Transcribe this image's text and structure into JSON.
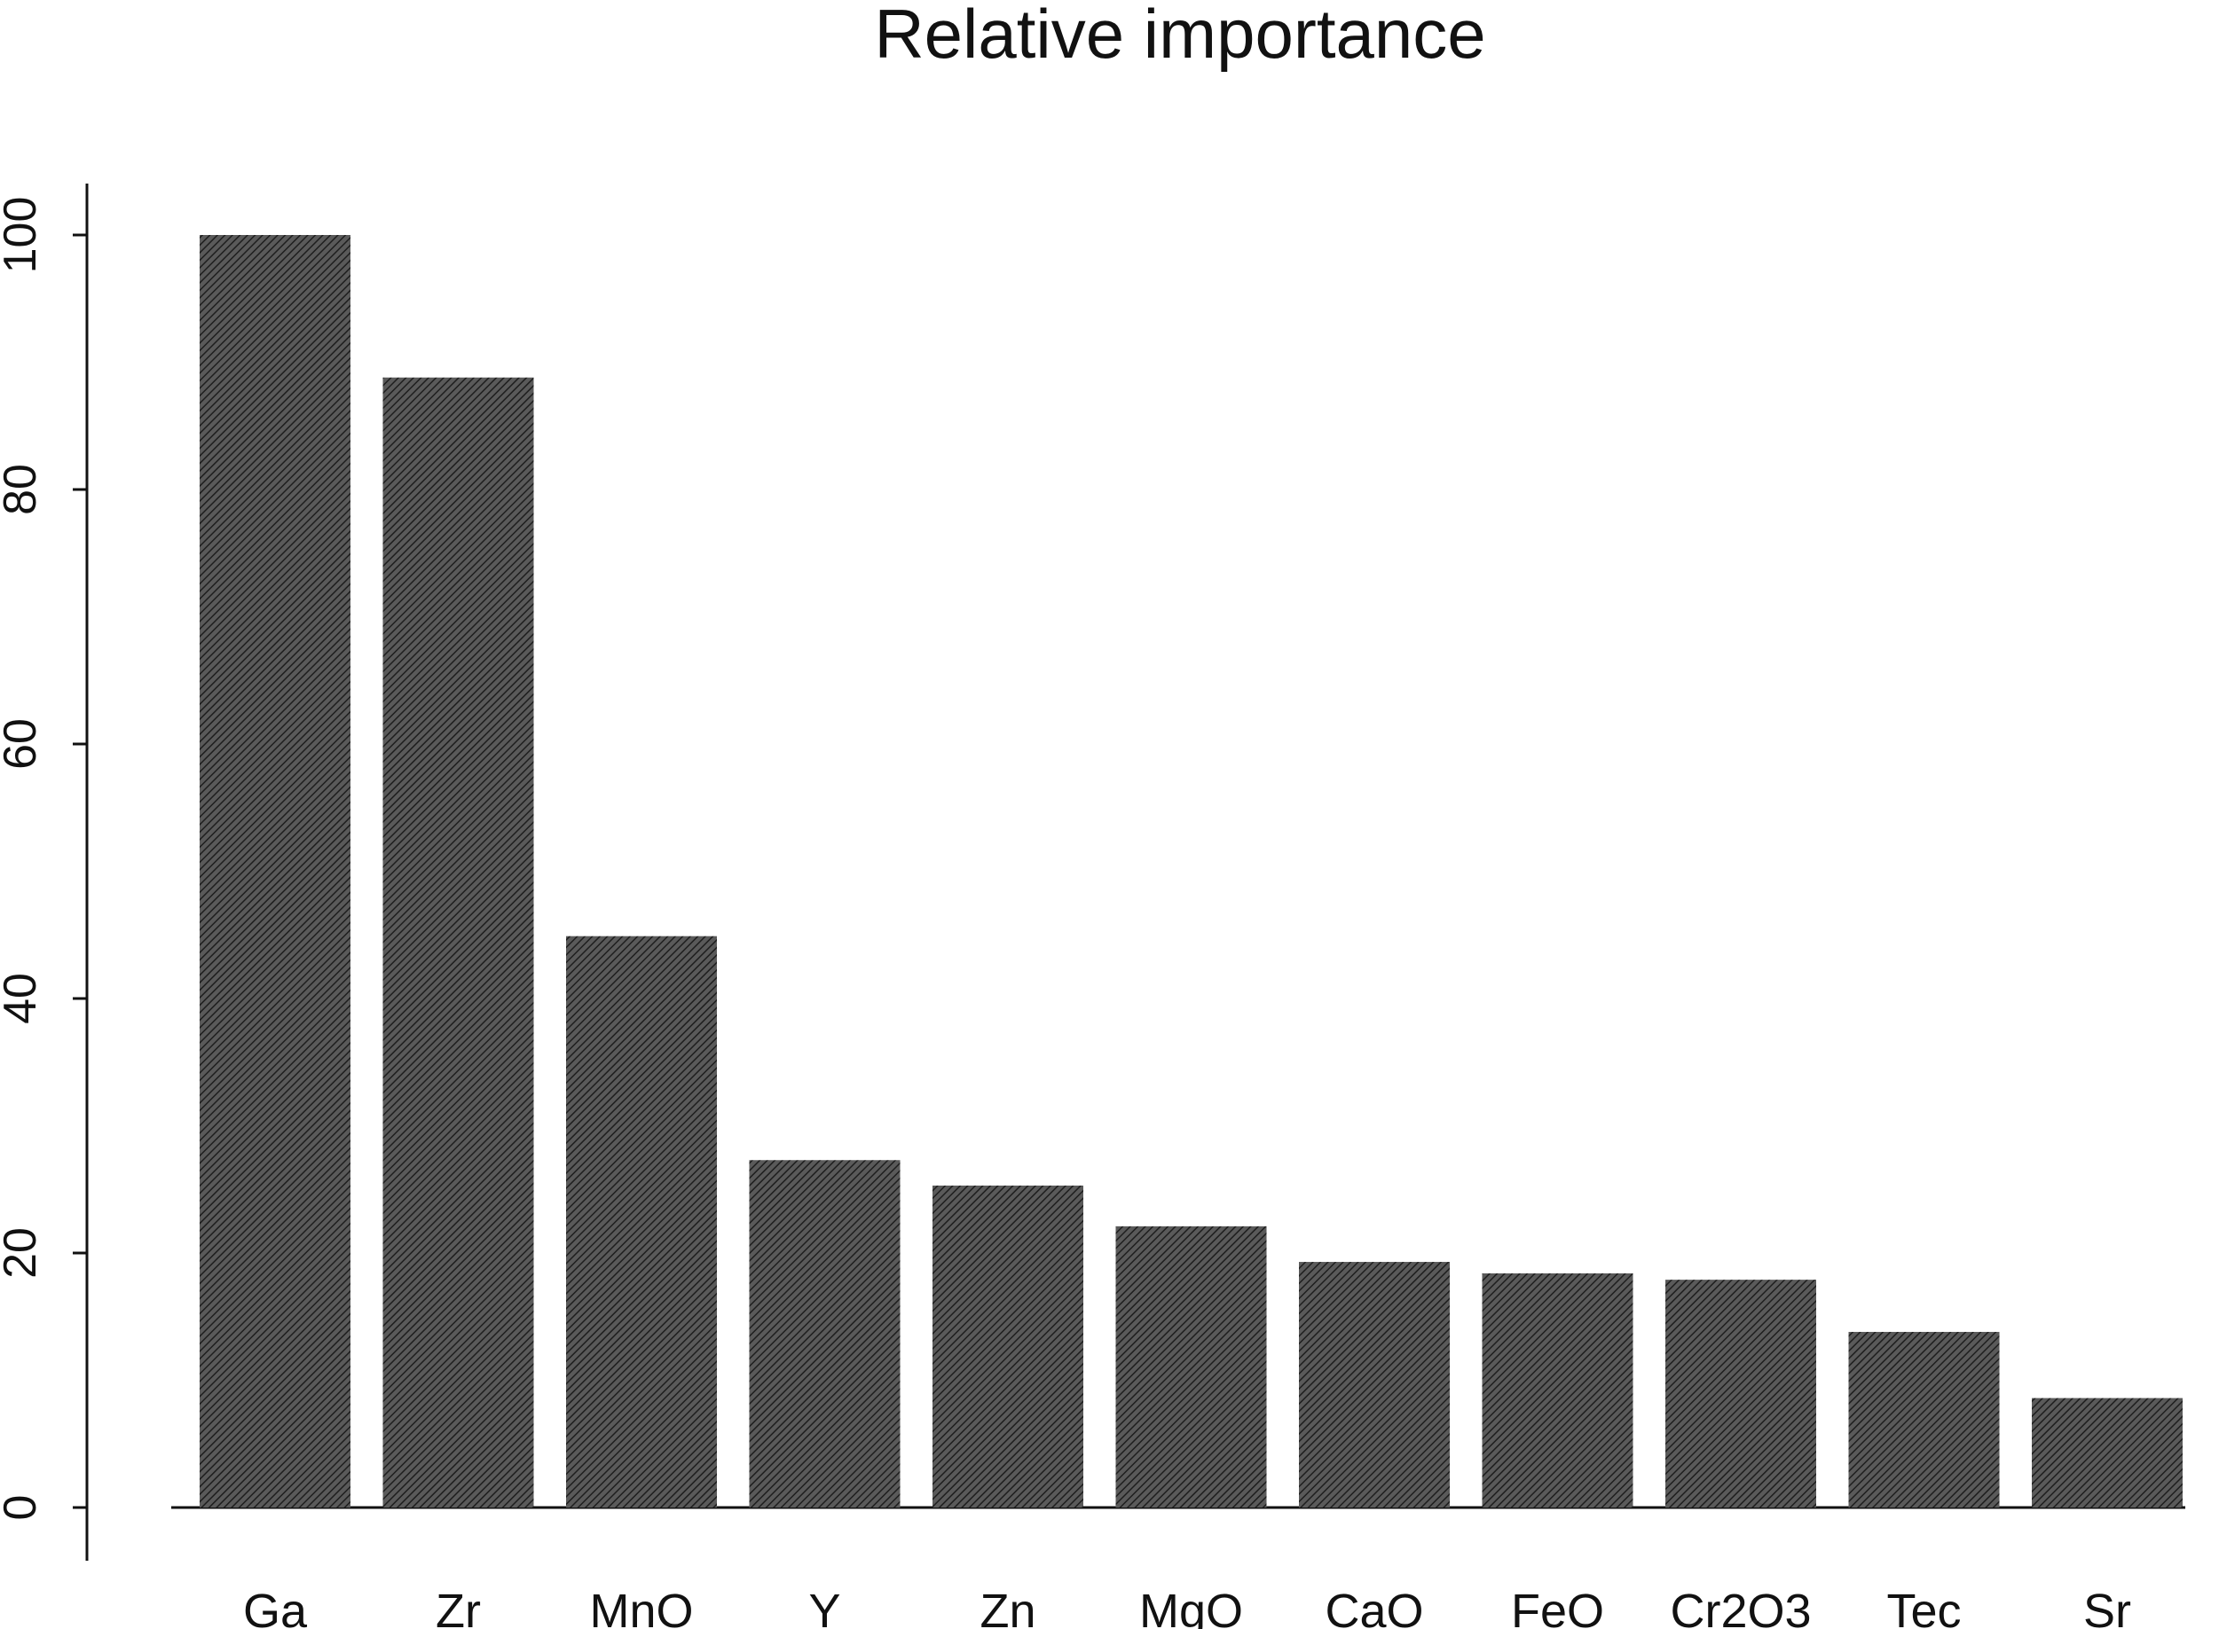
{
  "chart_data": {
    "type": "bar",
    "title": "Relative importance",
    "categories": [
      "Ga",
      "Zr",
      "MnO",
      "Y",
      "Zn",
      "MgO",
      "CaO",
      "FeO",
      "Cr2O3",
      "Tec",
      "Sr"
    ],
    "values": [
      100,
      88.8,
      44.9,
      27.3,
      25.3,
      22.1,
      19.3,
      18.4,
      17.9,
      13.8,
      8.6
    ],
    "xlabel": "",
    "ylabel": "",
    "yticks": [
      0,
      20,
      40,
      60,
      80,
      100
    ],
    "ylim": [
      -4,
      104
    ],
    "grid": false,
    "bar_color": "#3a3a3a"
  }
}
